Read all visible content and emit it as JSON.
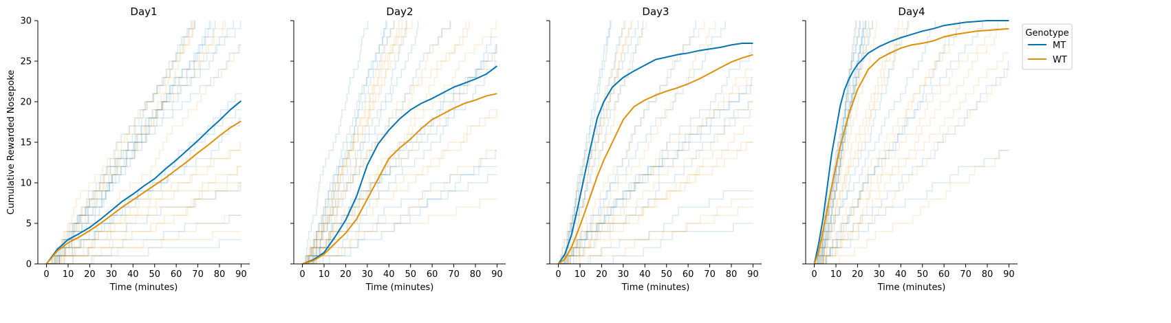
{
  "chart_data": {
    "type": "line",
    "ylabel": "Cumulative Rewarded Nosepoke",
    "xlabel": "Time (minutes)",
    "xlim": [
      -4,
      94
    ],
    "ylim": [
      0,
      30
    ],
    "xticks": [
      0,
      10,
      20,
      30,
      40,
      50,
      60,
      70,
      80,
      90
    ],
    "yticks": [
      0,
      5,
      10,
      15,
      20,
      25,
      30
    ],
    "legend": {
      "title": "Genotype",
      "placement": "outside-right",
      "entries": [
        {
          "name": "MT",
          "color": "#0173b2"
        },
        {
          "name": "WT",
          "color": "#de8f05"
        }
      ]
    },
    "individual_traces_note_alpha": 0.15,
    "panels": [
      {
        "title": "Day1",
        "series": [
          {
            "name": "MT",
            "color": "#0173b2",
            "x": [
              0,
              5,
              10,
              15,
              20,
              25,
              30,
              35,
              40,
              45,
              50,
              55,
              60,
              65,
              70,
              75,
              80,
              85,
              90
            ],
            "y": [
              0,
              1.8,
              3.0,
              3.7,
              4.5,
              5.5,
              6.6,
              7.7,
              8.6,
              9.6,
              10.5,
              11.7,
              12.8,
              14.0,
              15.2,
              16.5,
              17.7,
              19.0,
              20.1
            ]
          },
          {
            "name": "WT",
            "color": "#de8f05",
            "x": [
              0,
              5,
              10,
              15,
              20,
              25,
              30,
              35,
              40,
              45,
              50,
              55,
              60,
              65,
              70,
              75,
              80,
              85,
              90
            ],
            "y": [
              0,
              1.6,
              2.6,
              3.3,
              4.1,
              5.0,
              6.0,
              7.0,
              7.9,
              8.8,
              9.7,
              10.6,
              11.6,
              12.6,
              13.7,
              14.7,
              15.8,
              16.8,
              17.6
            ]
          }
        ]
      },
      {
        "title": "Day2",
        "series": [
          {
            "name": "MT",
            "color": "#0173b2",
            "x": [
              0,
              5,
              10,
              15,
              20,
              25,
              30,
              35,
              40,
              45,
              50,
              55,
              60,
              65,
              70,
              75,
              80,
              85,
              90
            ],
            "y": [
              0,
              0.5,
              1.4,
              3.3,
              5.4,
              8.3,
              12.2,
              14.8,
              16.5,
              17.9,
              19.0,
              19.8,
              20.4,
              21.1,
              21.8,
              22.3,
              22.8,
              23.4,
              24.4
            ]
          },
          {
            "name": "WT",
            "color": "#de8f05",
            "x": [
              0,
              5,
              10,
              15,
              20,
              25,
              30,
              35,
              40,
              45,
              50,
              55,
              60,
              65,
              70,
              75,
              80,
              85,
              90
            ],
            "y": [
              0,
              0.4,
              1.2,
              2.5,
              3.8,
              5.5,
              8.0,
              10.5,
              13.0,
              14.3,
              15.4,
              16.7,
              17.8,
              18.5,
              19.2,
              19.8,
              20.2,
              20.7,
              21.0
            ]
          }
        ]
      },
      {
        "title": "Day3",
        "series": [
          {
            "name": "MT",
            "color": "#0173b2",
            "x": [
              0,
              3,
              6,
              9,
              12,
              15,
              18,
              21,
              25,
              30,
              35,
              40,
              45,
              50,
              55,
              60,
              65,
              70,
              75,
              80,
              85,
              90
            ],
            "y": [
              0,
              1.2,
              3.5,
              7.0,
              10.8,
              14.5,
              18.0,
              20.0,
              21.8,
              23.0,
              23.8,
              24.5,
              25.2,
              25.5,
              25.8,
              26.0,
              26.3,
              26.5,
              26.7,
              27.0,
              27.2,
              27.2
            ]
          },
          {
            "name": "WT",
            "color": "#de8f05",
            "x": [
              0,
              3,
              6,
              9,
              12,
              15,
              18,
              21,
              25,
              30,
              35,
              40,
              45,
              50,
              55,
              60,
              65,
              70,
              75,
              80,
              85,
              90
            ],
            "y": [
              0,
              0.6,
              2.0,
              4.0,
              6.2,
              8.5,
              10.8,
              12.8,
              15.0,
              17.8,
              19.4,
              20.2,
              20.8,
              21.3,
              21.7,
              22.2,
              22.8,
              23.5,
              24.2,
              24.9,
              25.4,
              25.8
            ]
          }
        ]
      },
      {
        "title": "Day4",
        "series": [
          {
            "name": "MT",
            "color": "#0173b2",
            "x": [
              0,
              2,
              4,
              6,
              8,
              10,
              12,
              14,
              16,
              18,
              20,
              25,
              30,
              35,
              40,
              45,
              50,
              55,
              60,
              65,
              70,
              75,
              80,
              85,
              90
            ],
            "y": [
              0,
              2.5,
              5.5,
              9.5,
              13.5,
              16.5,
              19.5,
              21.5,
              22.8,
              23.8,
              24.6,
              26.0,
              26.8,
              27.4,
              27.9,
              28.3,
              28.7,
              29.0,
              29.4,
              29.6,
              29.8,
              29.9,
              30.0,
              30.0,
              30.0
            ]
          },
          {
            "name": "WT",
            "color": "#de8f05",
            "x": [
              0,
              2,
              4,
              6,
              8,
              10,
              12,
              14,
              16,
              18,
              20,
              25,
              30,
              35,
              40,
              45,
              50,
              55,
              60,
              65,
              70,
              75,
              80,
              85,
              90
            ],
            "y": [
              0,
              1.5,
              4.0,
              6.8,
              9.5,
              12.0,
              14.5,
              16.5,
              18.5,
              20.0,
              21.5,
              24.0,
              25.3,
              26.0,
              26.6,
              27.0,
              27.2,
              27.5,
              28.0,
              28.3,
              28.5,
              28.7,
              28.8,
              28.9,
              29.0
            ]
          }
        ]
      }
    ]
  }
}
